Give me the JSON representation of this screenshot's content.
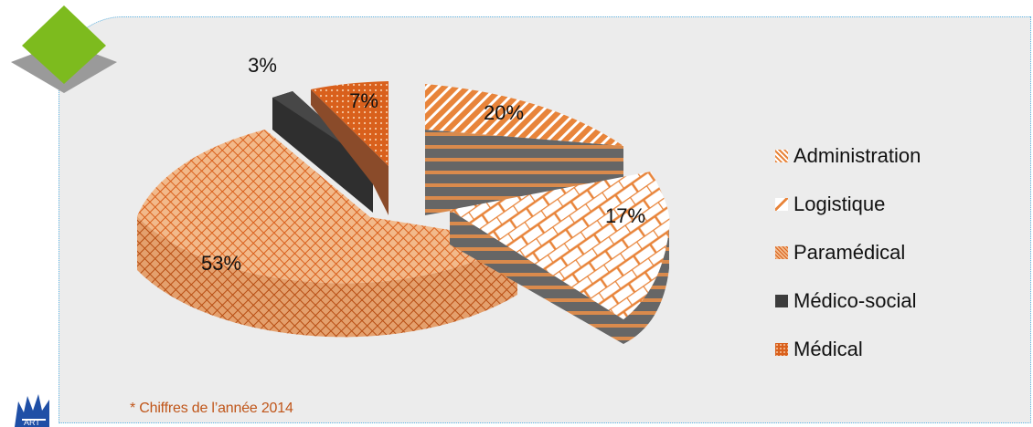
{
  "footnote": "* Chiffres de l’année 2014",
  "colors": {
    "orange": "#e8843a",
    "dark_orange": "#d9601c",
    "charcoal": "#3c3c3c",
    "panel": "#ececec",
    "accent_green": "#7dbb1e",
    "border_blue": "#5fb6e6"
  },
  "chart_data": {
    "type": "pie",
    "style": "3d-exploded",
    "legend_position": "right",
    "slices": [
      {
        "name": "Administration",
        "value": 20,
        "label": "20%",
        "pattern": "diagonal-stripes"
      },
      {
        "name": "Logistique",
        "value": 17,
        "label": "17%",
        "pattern": "brick"
      },
      {
        "name": "Paramédical",
        "value": 53,
        "label": "53%",
        "pattern": "crosshatch"
      },
      {
        "name": "Médico-social",
        "value": 3,
        "label": "3%",
        "pattern": "solid-dark"
      },
      {
        "name": "Médical",
        "value": 7,
        "label": "7%",
        "pattern": "dotted"
      }
    ]
  }
}
